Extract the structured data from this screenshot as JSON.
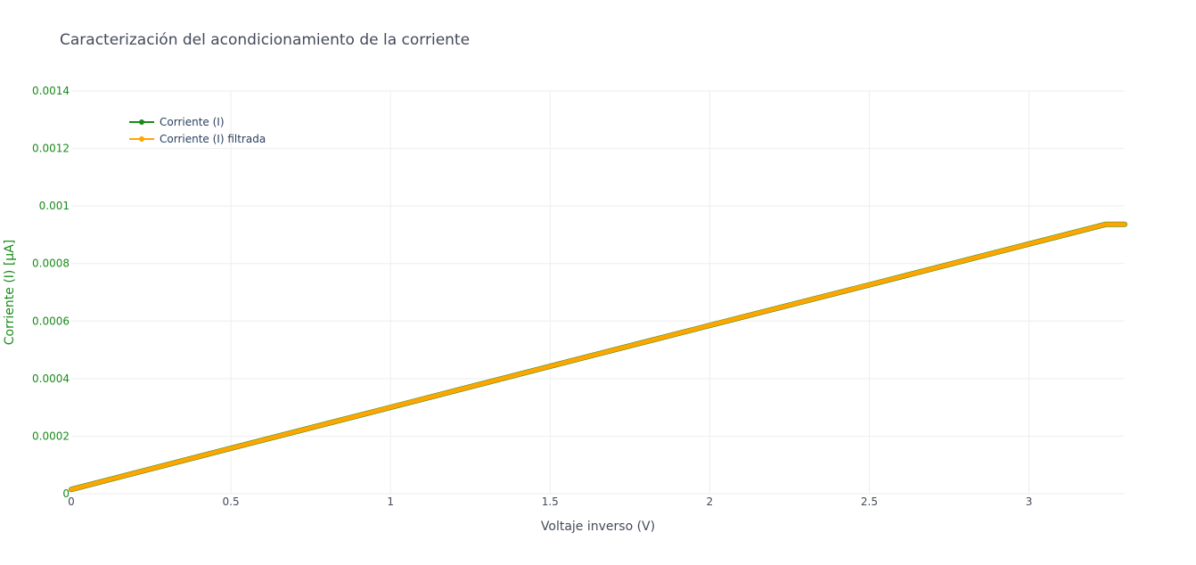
{
  "chart_data": {
    "type": "line",
    "title": "Caracterización del acondicionamiento de la corriente",
    "xlabel": "Voltaje inverso (V)",
    "ylabel": "Corriente (I) [µA]",
    "xlim": [
      0,
      3.3
    ],
    "ylim": [
      0,
      0.0014
    ],
    "x_ticks": [
      {
        "v": 0,
        "label": "0"
      },
      {
        "v": 0.5,
        "label": "0.5"
      },
      {
        "v": 1,
        "label": "1"
      },
      {
        "v": 1.5,
        "label": "1.5"
      },
      {
        "v": 2,
        "label": "2"
      },
      {
        "v": 2.5,
        "label": "2.5"
      },
      {
        "v": 3,
        "label": "3"
      }
    ],
    "y_ticks": [
      {
        "v": 0,
        "label": "0"
      },
      {
        "v": 0.0002,
        "label": "0.0002"
      },
      {
        "v": 0.0004,
        "label": "0.0004"
      },
      {
        "v": 0.0006,
        "label": "0.0006"
      },
      {
        "v": 0.0008,
        "label": "0.0008"
      },
      {
        "v": 0.001,
        "label": "0.001"
      },
      {
        "v": 0.0012,
        "label": "0.0012"
      },
      {
        "v": 0.0014,
        "label": "0.0014"
      }
    ],
    "grid": true,
    "legend_position": "top-left",
    "series": [
      {
        "name": "Corriente (I)",
        "color": "#1a8a1a",
        "x": [
          0,
          0.5,
          1.0,
          1.5,
          2.0,
          2.5,
          3.0,
          3.24,
          3.3
        ],
        "y": [
          1.5e-05,
          0.000158,
          0.0003,
          0.000443,
          0.000585,
          0.000726,
          0.000868,
          0.000936,
          0.000936
        ]
      },
      {
        "name": "Corriente (I) filtrada",
        "color": "#ffa500",
        "x": [
          0,
          0.5,
          1.0,
          1.5,
          2.0,
          2.5,
          3.0,
          3.24,
          3.3
        ],
        "y": [
          1.5e-05,
          0.000158,
          0.0003,
          0.000443,
          0.000585,
          0.000726,
          0.000868,
          0.000936,
          0.000936
        ]
      }
    ],
    "colors": {
      "y_axis_text": "#1a8a1a",
      "x_axis_text": "#444a5a"
    }
  }
}
